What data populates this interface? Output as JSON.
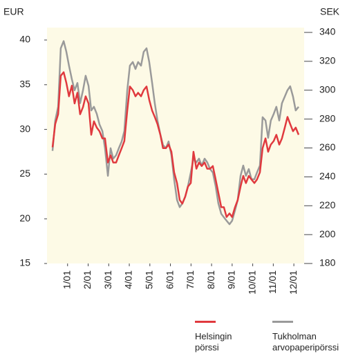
{
  "chart_data": {
    "type": "line",
    "y_unit_label": "EUR",
    "y2_unit_label": "SEK",
    "x": [
      0.27,
      0.4,
      0.54,
      0.67,
      0.81,
      0.94,
      1.07,
      1.21,
      1.34,
      1.48,
      1.61,
      1.75,
      1.88,
      2.02,
      2.15,
      2.28,
      2.42,
      2.55,
      2.69,
      2.82,
      2.96,
      3.09,
      3.22,
      3.36,
      3.49,
      3.63,
      3.76,
      3.9,
      4.03,
      4.17,
      4.3,
      4.43,
      4.57,
      4.7,
      4.84,
      4.97,
      5.11,
      5.24,
      5.37,
      5.51,
      5.64,
      5.78,
      5.91,
      6.05,
      6.18,
      6.32,
      6.45,
      6.58,
      6.72,
      6.85,
      6.99,
      7.12,
      7.26,
      7.39,
      7.52,
      7.66,
      7.79,
      7.93,
      8.06,
      8.2,
      8.33,
      8.47,
      8.6,
      8.73,
      8.87,
      9.0,
      9.14,
      9.27,
      9.41,
      9.54,
      9.67,
      9.81,
      9.94,
      10.08,
      10.21,
      10.35,
      10.48,
      10.62,
      10.75,
      10.88,
      11.02,
      11.15,
      11.29,
      11.42,
      11.56,
      11.69,
      11.82,
      11.96,
      12.09,
      12.23
    ],
    "xlim": [
      0,
      12.5
    ],
    "xticks": [
      {
        "value": 1,
        "label": "1/01"
      },
      {
        "value": 2,
        "label": "2/01"
      },
      {
        "value": 3,
        "label": "3/01"
      },
      {
        "value": 4,
        "label": "4/01"
      },
      {
        "value": 5,
        "label": "5/01"
      },
      {
        "value": 6,
        "label": "6/01"
      },
      {
        "value": 7,
        "label": "7/01"
      },
      {
        "value": 8,
        "label": "8/01"
      },
      {
        "value": 9,
        "label": "9/01"
      },
      {
        "value": 10,
        "label": "10/01"
      },
      {
        "value": 11,
        "label": "11/01"
      },
      {
        "value": 12,
        "label": "12/01"
      }
    ],
    "ylim": [
      15,
      40
    ],
    "yticks": [
      15,
      20,
      25,
      30,
      35,
      40
    ],
    "y2lim": [
      180,
      340
    ],
    "y2ticks": [
      180,
      200,
      220,
      240,
      260,
      280,
      300,
      320,
      340
    ],
    "series": [
      {
        "name": "Helsingin pörssi",
        "color": "#e0393e",
        "axis": "y",
        "values": [
          28,
          30.6,
          31.7,
          36,
          36.4,
          35.2,
          33.7,
          34.9,
          32.9,
          34.1,
          31.7,
          32.5,
          33.7,
          32.9,
          29.4,
          30.9,
          30.2,
          29.8,
          29,
          29,
          26.3,
          27.1,
          26.3,
          26.3,
          27.1,
          27.9,
          28.7,
          32.1,
          34.8,
          34.4,
          33.7,
          34.1,
          33.7,
          34.4,
          34.8,
          33.3,
          32.1,
          31.4,
          30.6,
          29.4,
          27.9,
          27.9,
          28.3,
          27.5,
          25.2,
          24,
          22.1,
          21.7,
          22.5,
          23.6,
          24,
          27.5,
          25.6,
          26.3,
          25.9,
          26.3,
          25.6,
          25.6,
          25.9,
          24.4,
          22.9,
          21.3,
          21.3,
          20.2,
          20.6,
          20.2,
          21.3,
          22.1,
          23.6,
          24.8,
          24,
          24.8,
          24.4,
          24,
          24.4,
          25.2,
          27.9,
          29,
          27.5,
          28.3,
          28.7,
          29.4,
          28.3,
          29,
          30.2,
          31.4,
          30.6,
          29.8,
          30.2,
          29.4
        ]
      },
      {
        "name": "Tukholman arvopaperipörssi",
        "color": "#9a9a9a",
        "axis": "y2",
        "values": [
          258,
          279,
          288.5,
          329,
          334,
          326.6,
          317,
          307.5,
          300,
          305,
          291,
          300,
          310,
          303,
          286,
          288.5,
          283.6,
          276.4,
          271.7,
          259.8,
          240.7,
          259.8,
          252.6,
          255,
          259.8,
          264.5,
          271.7,
          300,
          317,
          319.5,
          314.7,
          319.5,
          317,
          326.6,
          329,
          319.5,
          305,
          291,
          279,
          269.3,
          262,
          259.8,
          264.5,
          255,
          238.3,
          224,
          219,
          221.6,
          226.3,
          233.5,
          243,
          252.6,
          250,
          252.6,
          247.8,
          252.6,
          250,
          245.4,
          243,
          233.5,
          221.6,
          214.4,
          212,
          209.6,
          207.2,
          209.6,
          216.8,
          224,
          240.7,
          247.8,
          240.7,
          245.4,
          238.3,
          238.3,
          243,
          247.8,
          281.3,
          279,
          267,
          279,
          283.6,
          288.5,
          279,
          291,
          295.6,
          300,
          302.7,
          295.6,
          286,
          288.5
        ]
      }
    ]
  }
}
